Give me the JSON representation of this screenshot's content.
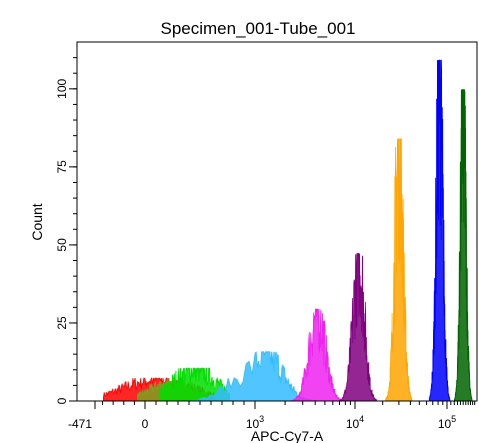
{
  "chart_data": {
    "type": "area",
    "title": "Specimen_001-Tube_001",
    "xlabel": "APC-Cy7-A",
    "ylabel": "Count",
    "x_scale": "biexponential",
    "xlim": [
      -471,
      200000
    ],
    "ylim": [
      0,
      115
    ],
    "grid": false,
    "legend": "none",
    "x_ticks": [
      {
        "value": -471,
        "label": "-471"
      },
      {
        "value": 0,
        "label": "0"
      },
      {
        "value": 1000,
        "label": "10",
        "exp": "3"
      },
      {
        "value": 10000,
        "label": "10",
        "exp": "4"
      },
      {
        "value": 100000,
        "label": "10",
        "exp": "5"
      }
    ],
    "y_ticks": [
      {
        "value": 0,
        "label": "0"
      },
      {
        "value": 25,
        "label": "25"
      },
      {
        "value": 50,
        "label": "50"
      },
      {
        "value": 75,
        "label": "75"
      },
      {
        "value": 100,
        "label": "100"
      }
    ],
    "series": [
      {
        "color": "#ff0000",
        "peak_x": 120,
        "width": 320,
        "peak_count": 7,
        "kind": "broad"
      },
      {
        "color": "#7fa020",
        "peak_x": 250,
        "width": 200,
        "peak_count": 6,
        "kind": "broad"
      },
      {
        "color": "#00dd00",
        "peak_x": 450,
        "width": 200,
        "peak_count": 10,
        "kind": "broad"
      },
      {
        "color": "#33bbff",
        "peak_x": 1300,
        "width": 0.16,
        "peak_count": 15,
        "kind": "peak"
      },
      {
        "color": "#ee22ee",
        "peak_x": 4200,
        "width": 0.08,
        "peak_count": 28,
        "kind": "peak"
      },
      {
        "color": "#800080",
        "peak_x": 11000,
        "width": 0.06,
        "peak_count": 45,
        "kind": "peak"
      },
      {
        "color": "#ffa500",
        "peak_x": 30000,
        "width": 0.045,
        "peak_count": 80,
        "kind": "peak"
      },
      {
        "color": "#0000ff",
        "peak_x": 83000,
        "width": 0.035,
        "peak_count": 104,
        "kind": "peak"
      },
      {
        "color": "#006400",
        "peak_x": 150000,
        "width": 0.03,
        "peak_count": 95,
        "kind": "peak"
      }
    ]
  }
}
